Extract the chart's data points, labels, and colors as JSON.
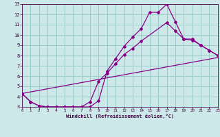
{
  "xlabel": "Windchill (Refroidissement éolien,°C)",
  "xlim": [
    0,
    23
  ],
  "ylim": [
    3,
    13
  ],
  "xticks": [
    0,
    1,
    2,
    3,
    4,
    5,
    6,
    7,
    8,
    9,
    10,
    11,
    12,
    13,
    14,
    15,
    16,
    17,
    18,
    19,
    20,
    21,
    22,
    23
  ],
  "yticks": [
    3,
    4,
    5,
    6,
    7,
    8,
    9,
    10,
    11,
    12,
    13
  ],
  "background_color": "#cce8e8",
  "grid_color": "#99cccc",
  "line_color": "#880088",
  "line1_x": [
    0,
    1,
    2,
    3,
    4,
    5,
    6,
    7,
    8,
    9,
    10,
    11,
    12,
    13,
    14,
    15,
    16,
    17,
    18,
    19,
    20,
    21,
    22,
    23
  ],
  "line1_y": [
    4.3,
    3.5,
    3.1,
    3.0,
    3.0,
    3.0,
    3.0,
    3.0,
    3.0,
    3.6,
    6.5,
    7.7,
    8.9,
    9.8,
    10.6,
    12.2,
    12.2,
    13.0,
    11.3,
    9.6,
    9.6,
    9.0,
    8.5,
    8.0
  ],
  "line2_x": [
    0,
    1,
    2,
    3,
    4,
    5,
    6,
    7,
    8,
    9,
    10,
    11,
    12,
    13,
    14,
    17,
    18,
    19,
    20,
    21,
    22,
    23
  ],
  "line2_y": [
    4.3,
    3.5,
    3.1,
    3.0,
    3.0,
    3.0,
    3.0,
    3.0,
    3.5,
    5.5,
    6.3,
    7.2,
    8.1,
    8.7,
    9.4,
    11.2,
    10.4,
    9.6,
    9.5,
    9.0,
    8.5,
    8.0
  ],
  "line3_x": [
    0,
    23
  ],
  "line3_y": [
    4.3,
    7.8
  ]
}
